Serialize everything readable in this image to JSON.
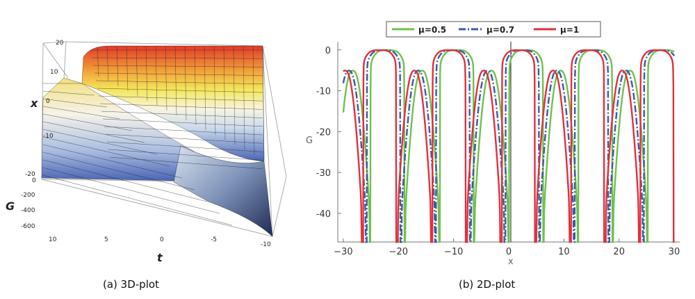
{
  "captions": {
    "left": "(a) 3D-plot",
    "right": "(b) 2D-plot"
  },
  "chart_data": [
    {
      "type": "surface",
      "xlabel": "t",
      "ylabel": "x",
      "zlabel": "G",
      "t_ticks": [
        "10",
        "5",
        "0",
        "-5",
        "-10"
      ],
      "x_ticks": [
        "20",
        "10",
        "0",
        "-10",
        "-20"
      ],
      "z_ticks": [
        "0",
        "-200",
        "-400",
        "-600"
      ],
      "t_range": [
        -10,
        10
      ],
      "x_range": [
        -20,
        20
      ],
      "z_range": [
        -650,
        20
      ],
      "colors": {
        "high": "#e5452e",
        "mid_high": "#f2e04a",
        "mid": "#ffffff",
        "low": "#4a63b3"
      }
    },
    {
      "type": "line",
      "xlabel": "x",
      "ylabel": "G",
      "xlim": [
        -31,
        31
      ],
      "ylim": [
        -47,
        2
      ],
      "x_ticks": [
        -30,
        -20,
        -10,
        0,
        10,
        20,
        30
      ],
      "y_ticks": [
        0,
        -10,
        -20,
        -30,
        -40
      ],
      "period": 12.566,
      "series": [
        {
          "name": "μ=0.5",
          "color": "#6ec24b",
          "dash": "solid"
        },
        {
          "name": "μ=0.7",
          "color": "#3a5aa8",
          "dash": "dashdot"
        },
        {
          "name": "μ=1",
          "color": "#e2303a",
          "dash": "solid"
        }
      ]
    }
  ]
}
